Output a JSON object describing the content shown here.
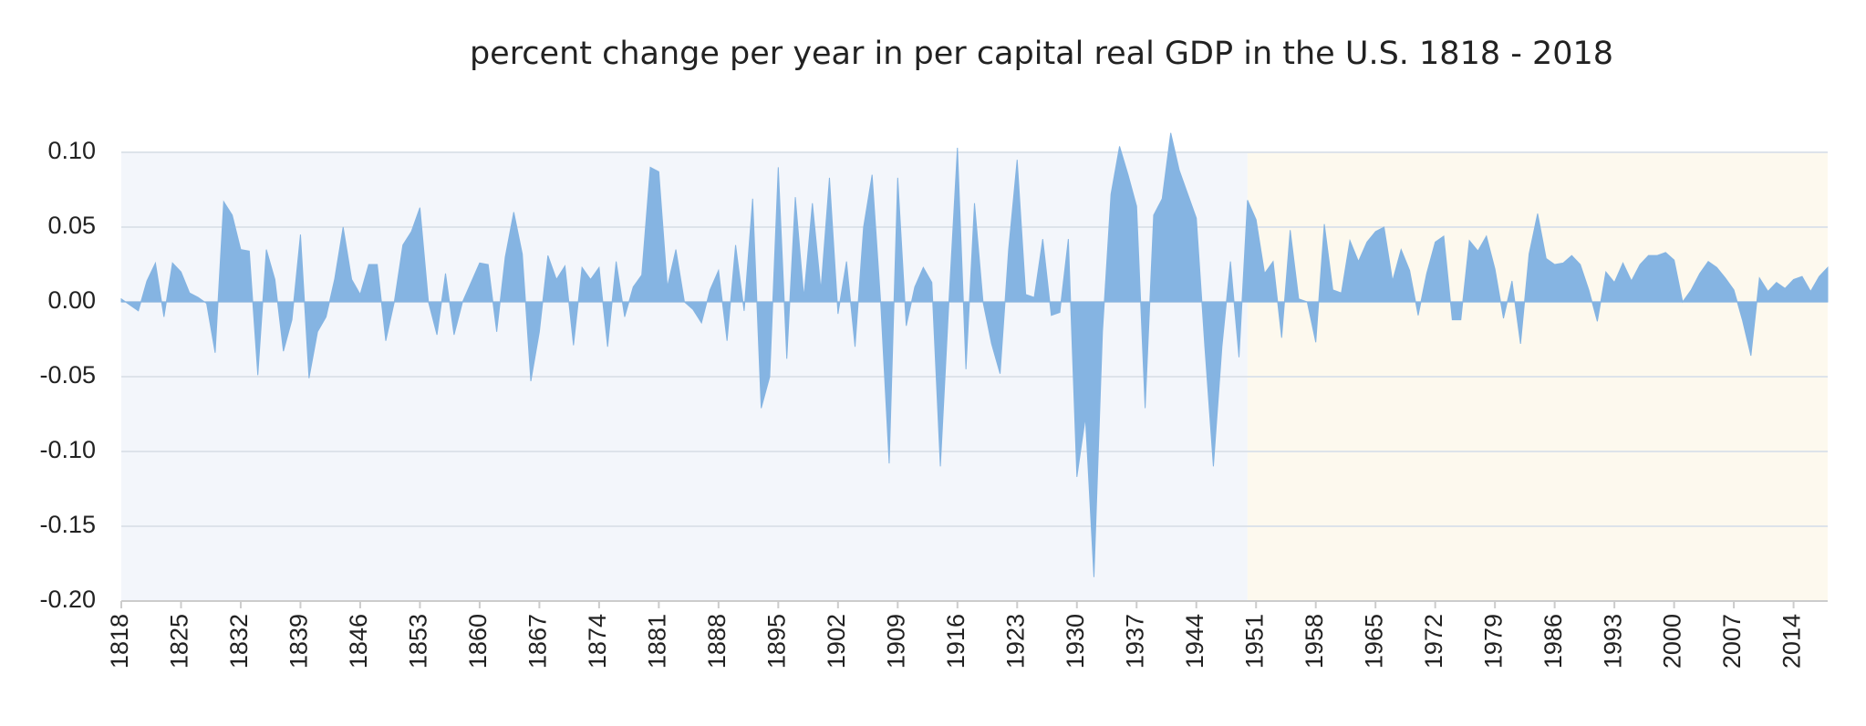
{
  "chart_data": {
    "type": "area",
    "title": "percent change per year in per capital real GDP in the U.S. 1818 - 2018",
    "color": "#85b4e2",
    "grid": true,
    "xlim": [
      1818,
      2018
    ],
    "ylim": [
      -0.2,
      0.1
    ],
    "xticks": [
      1818,
      1825,
      1832,
      1839,
      1846,
      1853,
      1860,
      1867,
      1874,
      1881,
      1888,
      1895,
      1902,
      1909,
      1916,
      1923,
      1930,
      1937,
      1944,
      1951,
      1958,
      1965,
      1972,
      1979,
      1986,
      1993,
      2000,
      2007,
      2014
    ],
    "yticks": [
      {
        "value": 0.1,
        "label": "0.10"
      },
      {
        "value": 0.05,
        "label": "0.05"
      },
      {
        "value": 0,
        "label": "0.00"
      },
      {
        "value": -0.05,
        "label": "-0.05"
      },
      {
        "value": -0.1,
        "label": "-0.10"
      },
      {
        "value": -0.15,
        "label": "-0.15"
      },
      {
        "value": -0.2,
        "label": "-0.20"
      }
    ],
    "bands": [
      {
        "from": 1818,
        "to": 1950,
        "color": "#f3f6fb"
      },
      {
        "from": 1950,
        "to": 2018,
        "color": "#fdf9ee"
      }
    ],
    "x": [
      1818,
      1819,
      1820,
      1821,
      1822,
      1823,
      1824,
      1825,
      1826,
      1827,
      1828,
      1829,
      1830,
      1831,
      1832,
      1833,
      1834,
      1835,
      1836,
      1837,
      1838,
      1839,
      1840,
      1841,
      1842,
      1843,
      1844,
      1845,
      1846,
      1847,
      1848,
      1849,
      1850,
      1851,
      1852,
      1853,
      1854,
      1855,
      1856,
      1857,
      1858,
      1859,
      1860,
      1861,
      1862,
      1863,
      1864,
      1865,
      1866,
      1867,
      1868,
      1869,
      1870,
      1871,
      1872,
      1873,
      1874,
      1875,
      1876,
      1877,
      1878,
      1879,
      1880,
      1881,
      1882,
      1883,
      1884,
      1885,
      1886,
      1887,
      1888,
      1889,
      1890,
      1891,
      1892,
      1893,
      1894,
      1895,
      1896,
      1897,
      1898,
      1899,
      1900,
      1901,
      1902,
      1903,
      1904,
      1905,
      1906,
      1907,
      1908,
      1909,
      1910,
      1911,
      1912,
      1913,
      1914,
      1915,
      1916,
      1917,
      1918,
      1919,
      1920,
      1921,
      1922,
      1923,
      1924,
      1925,
      1926,
      1927,
      1928,
      1929,
      1930,
      1931,
      1932,
      1933,
      1934,
      1935,
      1936,
      1937,
      1938,
      1939,
      1940,
      1941,
      1942,
      1943,
      1944,
      1945,
      1946,
      1947,
      1948,
      1949,
      1950,
      1951,
      1952,
      1953,
      1954,
      1955,
      1956,
      1957,
      1958,
      1959,
      1960,
      1961,
      1962,
      1963,
      1964,
      1965,
      1966,
      1967,
      1968,
      1969,
      1970,
      1971,
      1972,
      1973,
      1974,
      1975,
      1976,
      1977,
      1978,
      1979,
      1980,
      1981,
      1982,
      1983,
      1984,
      1985,
      1986,
      1987,
      1988,
      1989,
      1990,
      1991,
      1992,
      1993,
      1994,
      1995,
      1996,
      1997,
      1998,
      1999,
      2000,
      2001,
      2002,
      2003,
      2004,
      2005,
      2006,
      2007,
      2008,
      2009,
      2010,
      2011,
      2012,
      2013,
      2014,
      2015,
      2016,
      2017,
      2018
    ],
    "values": [
      0.002,
      -0.002,
      -0.006,
      0.014,
      0.026,
      -0.01,
      0.026,
      0.02,
      0.006,
      0.003,
      -0.001,
      -0.034,
      0.067,
      0.058,
      0.035,
      0.034,
      -0.049,
      0.035,
      0.015,
      -0.033,
      -0.012,
      0.045,
      -0.051,
      -0.02,
      -0.01,
      0.015,
      0.05,
      0.015,
      0.005,
      0.025,
      0.025,
      -0.026,
      0.0,
      0.038,
      0.047,
      0.063,
      0.0,
      -0.022,
      0.019,
      -0.022,
      0.0,
      0.013,
      0.026,
      0.025,
      -0.02,
      0.03,
      0.06,
      0.032,
      -0.053,
      -0.02,
      0.031,
      0.015,
      0.024,
      -0.029,
      0.023,
      0.015,
      0.023,
      -0.03,
      0.027,
      -0.01,
      0.01,
      0.018,
      0.09,
      0.087,
      0.01,
      0.035,
      0.0,
      -0.005,
      -0.014,
      0.008,
      0.021,
      -0.026,
      0.038,
      -0.006,
      0.069,
      -0.071,
      -0.05,
      0.09,
      -0.038,
      0.07,
      0.003,
      0.066,
      0.008,
      0.083,
      -0.008,
      0.027,
      -0.03,
      0.05,
      0.085,
      0.0,
      -0.108,
      0.083,
      -0.016,
      0.01,
      0.023,
      0.013,
      -0.11,
      0.0,
      0.103,
      -0.045,
      0.066,
      0.0,
      -0.028,
      -0.048,
      0.035,
      0.095,
      0.005,
      0.003,
      0.042,
      -0.009,
      -0.007,
      0.042,
      -0.117,
      -0.077,
      -0.184,
      -0.02,
      0.072,
      0.104,
      0.085,
      0.064,
      -0.071,
      0.058,
      0.069,
      0.113,
      0.088,
      0.072,
      0.056,
      -0.03,
      -0.11,
      -0.03,
      0.027,
      -0.037,
      0.068,
      0.055,
      0.019,
      0.027,
      -0.024,
      0.048,
      0.002,
      0.0,
      -0.027,
      0.052,
      0.008,
      0.006,
      0.041,
      0.027,
      0.04,
      0.047,
      0.05,
      0.014,
      0.035,
      0.021,
      -0.009,
      0.019,
      0.04,
      0.044,
      -0.012,
      -0.012,
      0.041,
      0.034,
      0.044,
      0.022,
      -0.011,
      0.014,
      -0.028,
      0.032,
      0.059,
      0.029,
      0.025,
      0.026,
      0.031,
      0.025,
      0.008,
      -0.013,
      0.02,
      0.013,
      0.026,
      0.014,
      0.025,
      0.031,
      0.031,
      0.033,
      0.028,
      0.0,
      0.008,
      0.019,
      0.027,
      0.023,
      0.016,
      0.008,
      -0.012,
      -0.036,
      0.016,
      0.007,
      0.013,
      0.009,
      0.015,
      0.017,
      0.007,
      0.017,
      0.023
    ]
  }
}
